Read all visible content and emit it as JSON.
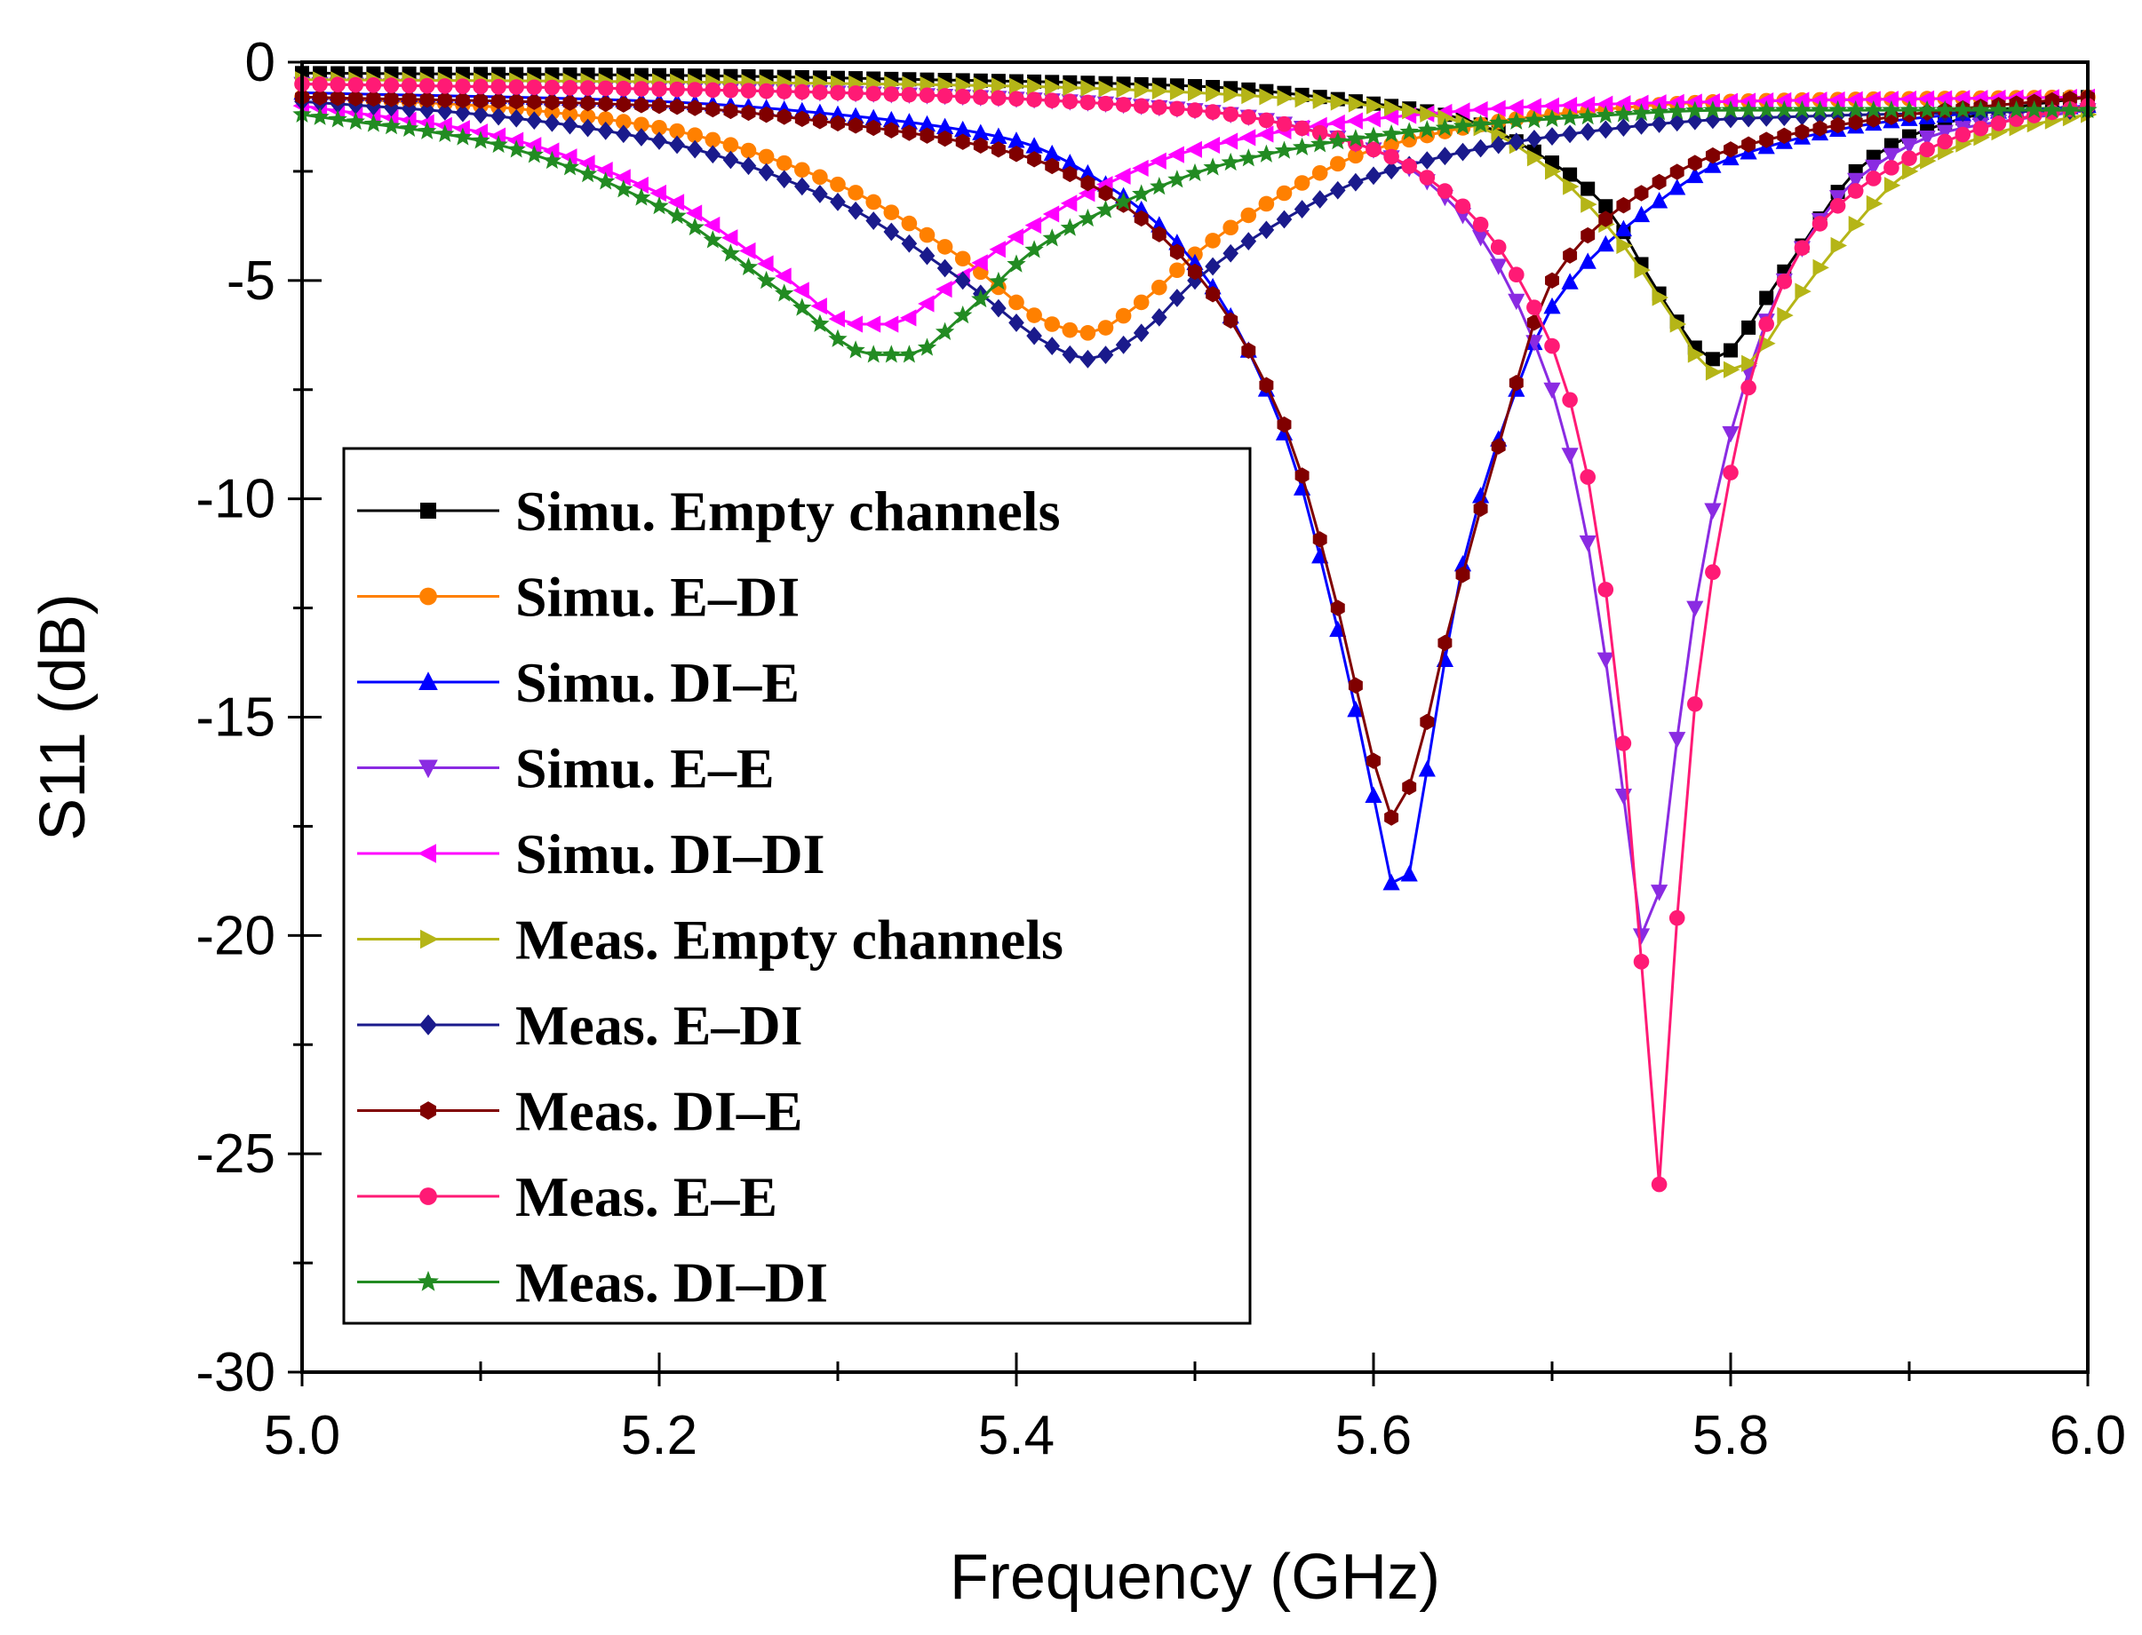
{
  "chart_data": {
    "type": "line",
    "title": "",
    "xlabel": "Frequency (GHz)",
    "ylabel": "S11 (dB)",
    "xlim": [
      5.0,
      6.0
    ],
    "ylim": [
      -30,
      0
    ],
    "xticks": [
      5.0,
      5.2,
      5.4,
      5.6,
      5.8,
      6.0
    ],
    "xtick_labels": [
      "5.0",
      "5.2",
      "5.4",
      "5.6",
      "5.8",
      "6.0"
    ],
    "yticks": [
      0,
      -5,
      -10,
      -15,
      -20,
      -25,
      -30
    ],
    "ytick_labels": [
      "0",
      "-5",
      "-10",
      "-15",
      "-20",
      "-25",
      "-30"
    ],
    "grid": false,
    "legend_position": "left",
    "series": [
      {
        "name": "Simu. Empty channels",
        "color": "#000000",
        "marker": "square",
        "points": [
          [
            5.0,
            -0.25
          ],
          [
            5.2,
            -0.3
          ],
          [
            5.35,
            -0.4
          ],
          [
            5.5,
            -0.55
          ],
          [
            5.6,
            -0.95
          ],
          [
            5.65,
            -1.3
          ],
          [
            5.7,
            -2.3
          ],
          [
            5.73,
            -3.3
          ],
          [
            5.76,
            -5.3
          ],
          [
            5.79,
            -6.8
          ],
          [
            5.8,
            -6.6
          ],
          [
            5.82,
            -5.4
          ],
          [
            5.84,
            -4.2
          ],
          [
            5.87,
            -2.5
          ],
          [
            5.9,
            -1.7
          ],
          [
            5.95,
            -1.1
          ],
          [
            6.0,
            -0.8
          ]
        ]
      },
      {
        "name": "Simu. E–DI",
        "color": "#ff8000",
        "marker": "circle",
        "points": [
          [
            5.0,
            -0.8
          ],
          [
            5.1,
            -1.0
          ],
          [
            5.2,
            -1.5
          ],
          [
            5.3,
            -2.8
          ],
          [
            5.37,
            -4.5
          ],
          [
            5.42,
            -6.0
          ],
          [
            5.44,
            -6.2
          ],
          [
            5.47,
            -5.5
          ],
          [
            5.5,
            -4.4
          ],
          [
            5.55,
            -3.0
          ],
          [
            5.6,
            -2.0
          ],
          [
            5.7,
            -1.2
          ],
          [
            5.8,
            -0.9
          ],
          [
            6.0,
            -0.8
          ]
        ]
      },
      {
        "name": "Simu. DI–E",
        "color": "#0000ff",
        "marker": "triangle-up",
        "points": [
          [
            5.0,
            -0.7
          ],
          [
            5.2,
            -0.9
          ],
          [
            5.3,
            -1.2
          ],
          [
            5.4,
            -1.8
          ],
          [
            5.45,
            -2.8
          ],
          [
            5.5,
            -4.6
          ],
          [
            5.55,
            -8.5
          ],
          [
            5.58,
            -13.0
          ],
          [
            5.6,
            -16.8
          ],
          [
            5.61,
            -18.8
          ],
          [
            5.62,
            -18.6
          ],
          [
            5.63,
            -16.2
          ],
          [
            5.65,
            -11.5
          ],
          [
            5.68,
            -7.5
          ],
          [
            5.7,
            -5.6
          ],
          [
            5.75,
            -3.5
          ],
          [
            5.8,
            -2.2
          ],
          [
            5.9,
            -1.3
          ],
          [
            6.0,
            -1.0
          ]
        ]
      },
      {
        "name": "Simu. E–E",
        "color": "#8a2be2",
        "marker": "triangle-down",
        "points": [
          [
            5.0,
            -0.5
          ],
          [
            5.3,
            -0.7
          ],
          [
            5.5,
            -1.1
          ],
          [
            5.6,
            -2.0
          ],
          [
            5.65,
            -3.5
          ],
          [
            5.7,
            -7.5
          ],
          [
            5.72,
            -11.0
          ],
          [
            5.74,
            -16.8
          ],
          [
            5.75,
            -20.0
          ],
          [
            5.76,
            -19.0
          ],
          [
            5.77,
            -15.5
          ],
          [
            5.78,
            -12.5
          ],
          [
            5.8,
            -8.5
          ],
          [
            5.83,
            -5.0
          ],
          [
            5.87,
            -2.7
          ],
          [
            5.92,
            -1.6
          ],
          [
            6.0,
            -1.1
          ]
        ]
      },
      {
        "name": "Simu. DI–DI",
        "color": "#ff00ff",
        "marker": "triangle-left",
        "points": [
          [
            5.0,
            -1.0
          ],
          [
            5.1,
            -1.6
          ],
          [
            5.2,
            -3.0
          ],
          [
            5.27,
            -4.9
          ],
          [
            5.31,
            -6.0
          ],
          [
            5.33,
            -6.0
          ],
          [
            5.36,
            -5.2
          ],
          [
            5.4,
            -4.0
          ],
          [
            5.45,
            -2.8
          ],
          [
            5.5,
            -2.0
          ],
          [
            5.6,
            -1.3
          ],
          [
            5.7,
            -1.0
          ],
          [
            5.8,
            -0.9
          ],
          [
            6.0,
            -0.8
          ]
        ]
      },
      {
        "name": "Meas. Empty channels",
        "color": "#b5b517",
        "marker": "triangle-right",
        "points": [
          [
            5.0,
            -0.4
          ],
          [
            5.2,
            -0.45
          ],
          [
            5.4,
            -0.55
          ],
          [
            5.5,
            -0.7
          ],
          [
            5.6,
            -1.0
          ],
          [
            5.66,
            -1.5
          ],
          [
            5.7,
            -2.5
          ],
          [
            5.74,
            -4.2
          ],
          [
            5.77,
            -6.0
          ],
          [
            5.79,
            -7.1
          ],
          [
            5.81,
            -6.9
          ],
          [
            5.83,
            -5.8
          ],
          [
            5.86,
            -4.2
          ],
          [
            5.9,
            -2.5
          ],
          [
            5.95,
            -1.6
          ],
          [
            6.0,
            -1.2
          ]
        ]
      },
      {
        "name": "Meas. E–DI",
        "color": "#1a1a8c",
        "marker": "diamond",
        "points": [
          [
            5.0,
            -0.9
          ],
          [
            5.1,
            -1.2
          ],
          [
            5.2,
            -1.8
          ],
          [
            5.3,
            -3.2
          ],
          [
            5.37,
            -5.0
          ],
          [
            5.42,
            -6.5
          ],
          [
            5.44,
            -6.8
          ],
          [
            5.47,
            -6.2
          ],
          [
            5.5,
            -5.0
          ],
          [
            5.55,
            -3.6
          ],
          [
            5.6,
            -2.6
          ],
          [
            5.7,
            -1.7
          ],
          [
            5.8,
            -1.3
          ],
          [
            6.0,
            -1.1
          ]
        ]
      },
      {
        "name": "Meas. DI–E",
        "color": "#800000",
        "marker": "hexagon",
        "points": [
          [
            5.0,
            -0.8
          ],
          [
            5.2,
            -1.0
          ],
          [
            5.3,
            -1.4
          ],
          [
            5.4,
            -2.1
          ],
          [
            5.45,
            -3.0
          ],
          [
            5.5,
            -4.8
          ],
          [
            5.55,
            -8.3
          ],
          [
            5.58,
            -12.5
          ],
          [
            5.6,
            -16.0
          ],
          [
            5.61,
            -17.3
          ],
          [
            5.62,
            -16.6
          ],
          [
            5.64,
            -13.3
          ],
          [
            5.67,
            -8.8
          ],
          [
            5.7,
            -5.0
          ],
          [
            5.75,
            -3.0
          ],
          [
            5.8,
            -2.0
          ],
          [
            5.9,
            -1.2
          ],
          [
            6.0,
            -0.8
          ]
        ]
      },
      {
        "name": "Meas. E–E",
        "color": "#ff1a75",
        "marker": "circle",
        "points": [
          [
            5.0,
            -0.5
          ],
          [
            5.3,
            -0.7
          ],
          [
            5.5,
            -1.1
          ],
          [
            5.6,
            -2.0
          ],
          [
            5.65,
            -3.3
          ],
          [
            5.7,
            -6.5
          ],
          [
            5.72,
            -9.5
          ],
          [
            5.74,
            -15.6
          ],
          [
            5.75,
            -20.6
          ],
          [
            5.76,
            -25.7
          ],
          [
            5.77,
            -19.6
          ],
          [
            5.78,
            -14.7
          ],
          [
            5.8,
            -9.4
          ],
          [
            5.82,
            -6.0
          ],
          [
            5.85,
            -3.7
          ],
          [
            5.9,
            -2.2
          ],
          [
            5.95,
            -1.4
          ],
          [
            6.0,
            -1.0
          ]
        ]
      },
      {
        "name": "Meas. DI–DI",
        "color": "#228b22",
        "marker": "star",
        "points": [
          [
            5.0,
            -1.2
          ],
          [
            5.1,
            -1.8
          ],
          [
            5.2,
            -3.3
          ],
          [
            5.27,
            -5.3
          ],
          [
            5.32,
            -6.7
          ],
          [
            5.34,
            -6.7
          ],
          [
            5.37,
            -5.8
          ],
          [
            5.41,
            -4.3
          ],
          [
            5.46,
            -3.2
          ],
          [
            5.52,
            -2.3
          ],
          [
            5.6,
            -1.7
          ],
          [
            5.7,
            -1.3
          ],
          [
            5.8,
            -1.1
          ],
          [
            6.0,
            -1.1
          ]
        ]
      }
    ]
  }
}
